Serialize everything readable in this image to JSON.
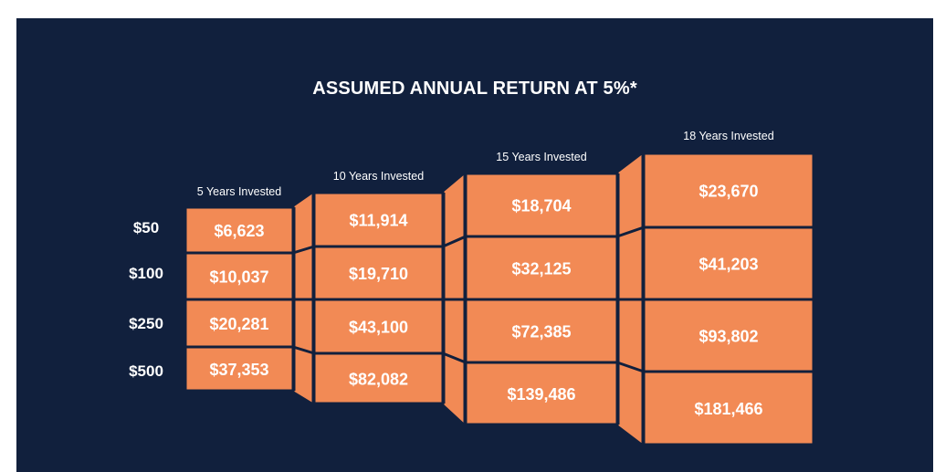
{
  "colors": {
    "background": "#11203d",
    "cell_fill": "#f28a55",
    "cell_border": "#11203d",
    "text": "#ffffff"
  },
  "title": "ASSUMED ANNUAL RETURN AT 5%*",
  "chart_data": {
    "type": "table",
    "title": "ASSUMED ANNUAL RETURN AT 5%*",
    "columns": [
      "5 Years Invested",
      "10 Years Invested",
      "15 Years Invested",
      "18 Years Invested"
    ],
    "rows": [
      "$50",
      "$100",
      "$250",
      "$500"
    ],
    "values": [
      [
        "$6,623",
        "$11,914",
        "$18,704",
        "$23,670"
      ],
      [
        "$10,037",
        "$19,710",
        "$32,125",
        "$41,203"
      ],
      [
        "$20,281",
        "$43,100",
        "$72,385",
        "$93,802"
      ],
      [
        "$37,353",
        "$82,082",
        "$139,486",
        "$181,466"
      ]
    ]
  }
}
